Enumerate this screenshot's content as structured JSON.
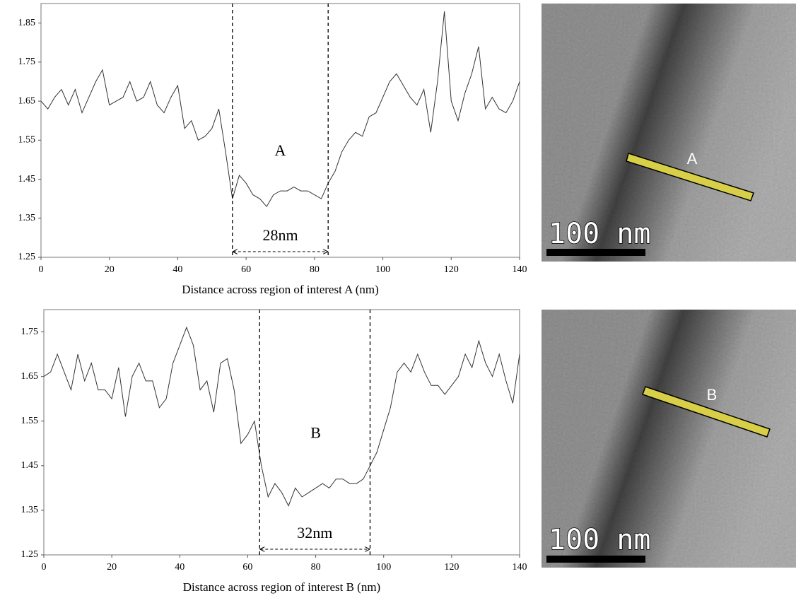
{
  "chart_data": [
    {
      "type": "line",
      "x_label": "Distance across region of interest A (nm)",
      "x": [
        0,
        2,
        4,
        6,
        8,
        10,
        12,
        14,
        16,
        18,
        20,
        22,
        24,
        26,
        28,
        30,
        32,
        34,
        36,
        38,
        40,
        42,
        44,
        46,
        48,
        50,
        52,
        54,
        56,
        58,
        60,
        62,
        64,
        66,
        68,
        70,
        72,
        74,
        76,
        78,
        80,
        82,
        84,
        86,
        88,
        90,
        92,
        94,
        96,
        98,
        100,
        102,
        104,
        106,
        108,
        110,
        112,
        114,
        116,
        118,
        120,
        122,
        124,
        126,
        128,
        130,
        132,
        134,
        136,
        138,
        140
      ],
      "values": [
        1.65,
        1.63,
        1.66,
        1.68,
        1.64,
        1.68,
        1.62,
        1.66,
        1.7,
        1.73,
        1.64,
        1.65,
        1.66,
        1.7,
        1.65,
        1.66,
        1.7,
        1.64,
        1.62,
        1.66,
        1.69,
        1.58,
        1.6,
        1.55,
        1.56,
        1.58,
        1.63,
        1.52,
        1.4,
        1.46,
        1.44,
        1.41,
        1.4,
        1.38,
        1.41,
        1.42,
        1.42,
        1.43,
        1.42,
        1.42,
        1.41,
        1.4,
        1.44,
        1.47,
        1.52,
        1.55,
        1.57,
        1.56,
        1.61,
        1.62,
        1.66,
        1.7,
        1.72,
        1.69,
        1.66,
        1.64,
        1.68,
        1.57,
        1.7,
        1.88,
        1.65,
        1.6,
        1.67,
        1.72,
        1.79,
        1.63,
        1.66,
        1.63,
        1.62,
        1.65,
        1.7
      ],
      "color": "#333333",
      "xlim": [
        0,
        140
      ],
      "xticks": [
        0,
        20,
        40,
        60,
        80,
        100,
        120,
        140
      ],
      "ylim": [
        1.25,
        1.9
      ],
      "yticks": [
        1.25,
        1.35,
        1.45,
        1.55,
        1.65,
        1.75,
        1.85
      ],
      "region": {
        "x": [
          56,
          84
        ],
        "label": "28nm"
      },
      "annotations": [
        {
          "text": "A",
          "x": 70,
          "y": 1.52
        }
      ]
    },
    {
      "type": "line",
      "x_label": "Distance across region of interest B (nm)",
      "x": [
        0,
        2,
        4,
        6,
        8,
        10,
        12,
        14,
        16,
        18,
        20,
        22,
        24,
        26,
        28,
        30,
        32,
        34,
        36,
        38,
        40,
        42,
        44,
        46,
        48,
        50,
        52,
        54,
        56,
        58,
        60,
        62,
        64,
        66,
        68,
        70,
        72,
        74,
        76,
        78,
        80,
        82,
        84,
        86,
        88,
        90,
        92,
        94,
        96,
        98,
        100,
        102,
        104,
        106,
        108,
        110,
        112,
        114,
        116,
        118,
        120,
        122,
        124,
        126,
        128,
        130,
        132,
        134,
        136,
        138,
        140
      ],
      "values": [
        1.65,
        1.66,
        1.7,
        1.66,
        1.62,
        1.7,
        1.64,
        1.68,
        1.62,
        1.62,
        1.6,
        1.67,
        1.56,
        1.65,
        1.68,
        1.64,
        1.64,
        1.58,
        1.6,
        1.68,
        1.72,
        1.76,
        1.72,
        1.62,
        1.64,
        1.57,
        1.68,
        1.69,
        1.62,
        1.5,
        1.52,
        1.55,
        1.45,
        1.38,
        1.41,
        1.39,
        1.36,
        1.4,
        1.38,
        1.39,
        1.4,
        1.41,
        1.4,
        1.42,
        1.42,
        1.41,
        1.41,
        1.42,
        1.45,
        1.48,
        1.53,
        1.58,
        1.66,
        1.68,
        1.66,
        1.7,
        1.66,
        1.63,
        1.63,
        1.61,
        1.63,
        1.65,
        1.7,
        1.67,
        1.73,
        1.68,
        1.65,
        1.7,
        1.64,
        1.59,
        1.7
      ],
      "color": "#333333",
      "xlim": [
        0,
        140
      ],
      "xticks": [
        0,
        20,
        40,
        60,
        80,
        100,
        120,
        140
      ],
      "ylim": [
        1.25,
        1.8
      ],
      "yticks": [
        1.25,
        1.35,
        1.45,
        1.55,
        1.65,
        1.75
      ],
      "region": {
        "x": [
          63.5,
          96
        ],
        "label": "32nm"
      },
      "annotations": [
        {
          "text": "B",
          "x": 80,
          "y": 1.52
        }
      ]
    }
  ],
  "images": [
    {
      "label": "A",
      "scale_bar": "100 nm"
    },
    {
      "label": "B",
      "scale_bar": "100 nm"
    }
  ]
}
